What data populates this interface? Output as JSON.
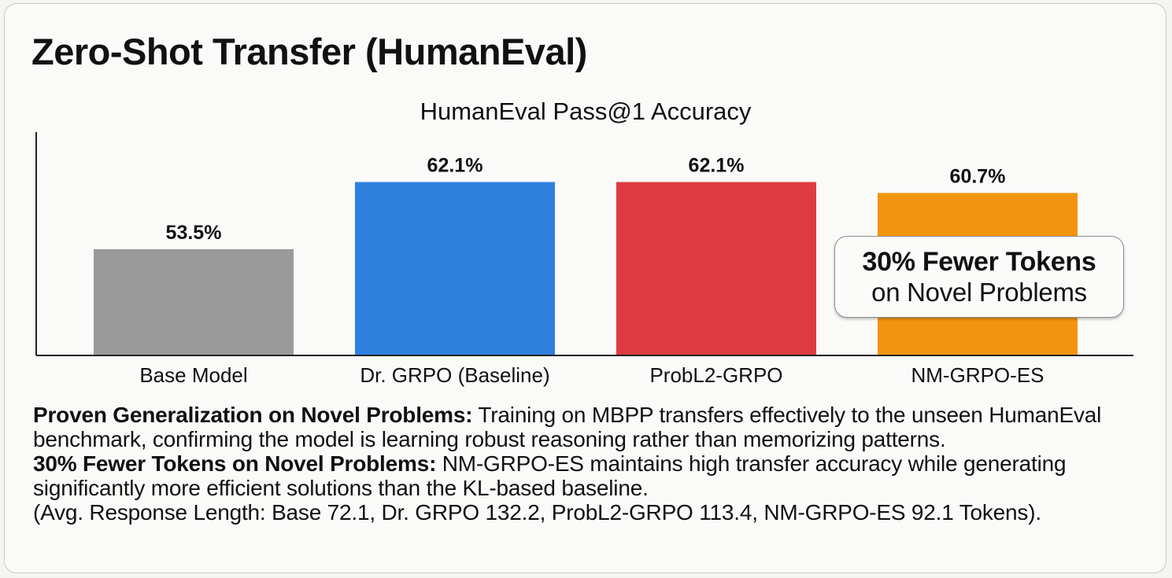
{
  "page": {
    "title": "Zero-Shot Transfer (HumanEval)"
  },
  "chart_data": {
    "type": "bar",
    "title": "HumanEval Pass@1 Accuracy",
    "xlabel": "",
    "ylabel": "",
    "categories": [
      "Base Model",
      "Dr. GRPO (Baseline)",
      "ProbL2-GRPO",
      "NM-GRPO-ES"
    ],
    "values": [
      53.5,
      62.1,
      62.1,
      60.7
    ],
    "data_labels": [
      "53.5%",
      "62.1%",
      "62.1%",
      "60.7%"
    ],
    "colors": [
      "#9a9a9a",
      "#2f80dd",
      "#dc3c42",
      "#f2940f"
    ],
    "ylim": [
      40,
      70
    ],
    "grid": false,
    "legend": "none"
  },
  "callout": {
    "line1": "30% Fewer Tokens",
    "line2": "on Novel Problems"
  },
  "notes": {
    "p1_bold": "Proven Generalization on Novel Problems:",
    "p1_text": " Training on MBPP transfers effectively to the unseen HumanEval benchmark, confirming the model is learning robust reasoning rather than memorizing patterns.",
    "p2_bold": "30% Fewer Tokens on Novel Problems:",
    "p2_text": " NM-GRPO-ES maintains high transfer accuracy while generating significantly more efficient solutions than the KL-based baseline.",
    "p3_text": "(Avg. Response Length: Base 72.1, Dr. GRPO 132.2, ProbL2-GRPO 113.4, NM-GRPO-ES 92.1 Tokens)."
  }
}
